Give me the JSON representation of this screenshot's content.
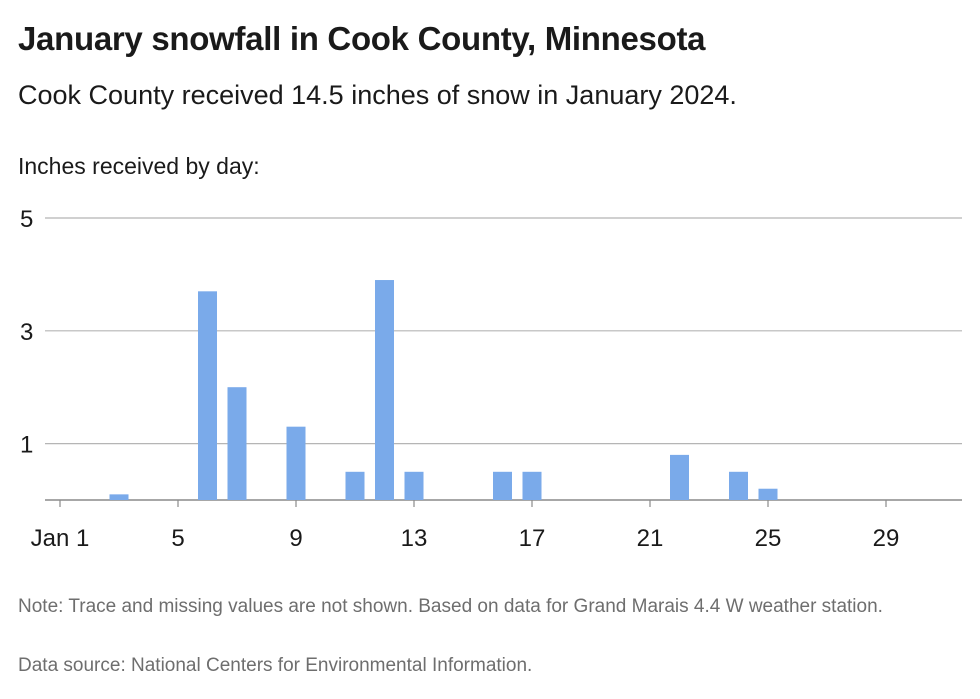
{
  "header": {
    "title": "January snowfall in Cook County, Minnesota",
    "subtitle": "Cook County received 14.5 inches of snow in January 2024."
  },
  "footer": {
    "note": "Note: Trace and missing values are not shown. Based on data for Grand Marais 4.4 W weather station.",
    "source": "Data source: National Centers for Environmental Information."
  },
  "chart_data": {
    "type": "bar",
    "ylabel": "Inches received by day:",
    "ylim": [
      0,
      5
    ],
    "yticks": [
      1,
      3,
      5
    ],
    "x_range": [
      1,
      31
    ],
    "xticks": [
      1,
      5,
      9,
      13,
      17,
      21,
      25,
      29
    ],
    "xtick_labels": [
      "Jan 1",
      "5",
      "9",
      "13",
      "17",
      "21",
      "25",
      "29"
    ],
    "grid": true,
    "bar_color": "#7aaaea",
    "points": [
      {
        "day": 3,
        "value": 0.1
      },
      {
        "day": 6,
        "value": 3.7
      },
      {
        "day": 7,
        "value": 2.0
      },
      {
        "day": 9,
        "value": 1.3
      },
      {
        "day": 11,
        "value": 0.5
      },
      {
        "day": 12,
        "value": 3.9
      },
      {
        "day": 13,
        "value": 0.5
      },
      {
        "day": 16,
        "value": 0.5
      },
      {
        "day": 17,
        "value": 0.5
      },
      {
        "day": 22,
        "value": 0.8
      },
      {
        "day": 24,
        "value": 0.5
      },
      {
        "day": 25,
        "value": 0.2
      }
    ]
  }
}
